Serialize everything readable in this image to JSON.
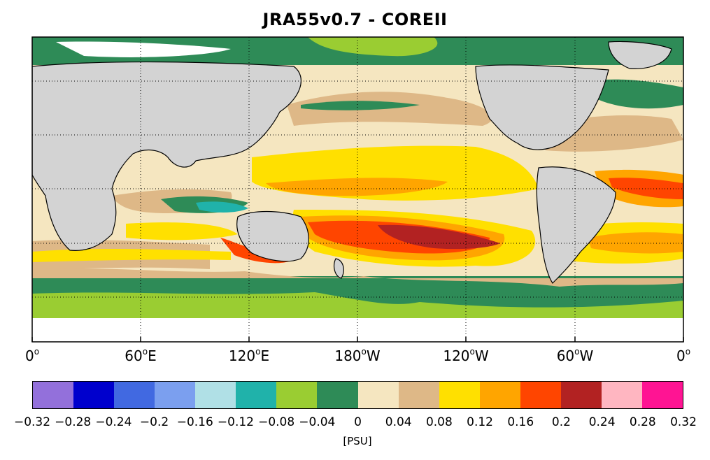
{
  "title": "JRA55v0.7 - COREII",
  "x_ticks": [
    "0",
    "60",
    "120",
    "180",
    "120",
    "60",
    "0"
  ],
  "x_tick_suffixes": [
    "",
    "E",
    "E",
    "W",
    "W",
    "W",
    ""
  ],
  "colorbar": {
    "colors": [
      "#9370db",
      "#0000cd",
      "#4169e1",
      "#7b9fef",
      "#b0e0e6",
      "#20b2aa",
      "#9acd32",
      "#2e8b57",
      "#f5e6c0",
      "#deb887",
      "#ffe000",
      "#ffa500",
      "#ff4500",
      "#b22222",
      "#ffb6c1",
      "#ff1493"
    ],
    "labels": [
      "−0.32",
      "−0.28",
      "−0.24",
      "−0.2",
      "−0.16",
      "−0.12",
      "−0.08",
      "−0.04",
      "0",
      "0.04",
      "0.08",
      "0.12",
      "0.16",
      "0.2",
      "0.24",
      "0.28",
      "0.32"
    ],
    "units": "[PSU]"
  },
  "colors": {
    "land": "#d3d3d3",
    "ice_nodata": "#ffffff"
  }
}
